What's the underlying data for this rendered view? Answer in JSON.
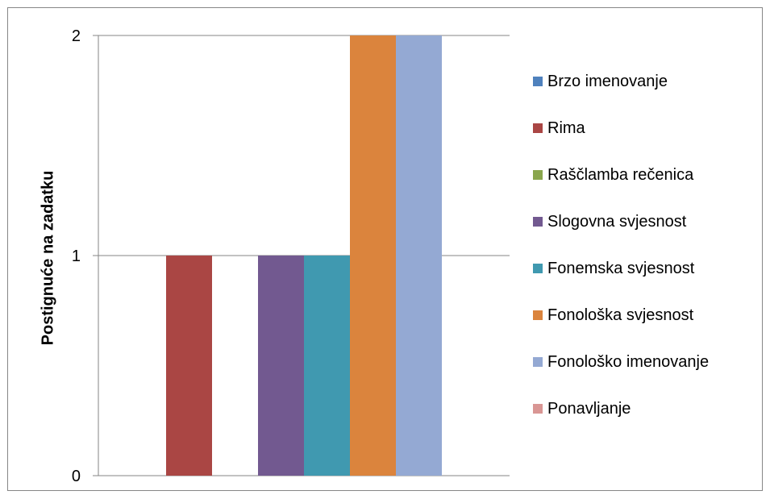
{
  "chart_data": {
    "type": "bar",
    "title": "",
    "xlabel": "",
    "ylabel": "Postignuće na zadatku",
    "ylim": [
      0,
      2
    ],
    "yticks": [
      "0",
      "1",
      "2"
    ],
    "grid": true,
    "legend_position": "right",
    "series": [
      {
        "name": "Brzo imenovanje",
        "value": 0,
        "color": "#4F81BD"
      },
      {
        "name": "Rima",
        "value": 1,
        "color": "#AA4644"
      },
      {
        "name": "Raščlamba rečenica",
        "value": 0,
        "color": "#8AA64D"
      },
      {
        "name": "Slogovna svjesnost",
        "value": 1,
        "color": "#725990"
      },
      {
        "name": "Fonemska svjesnost",
        "value": 1,
        "color": "#4099B0"
      },
      {
        "name": "Fonološka svjesnost",
        "value": 2,
        "color": "#DB843D"
      },
      {
        "name": "Fonološko imenovanje",
        "value": 2,
        "color": "#94A9D3"
      },
      {
        "name": "Ponavljanje",
        "value": 0,
        "color": "#D99694"
      }
    ]
  }
}
